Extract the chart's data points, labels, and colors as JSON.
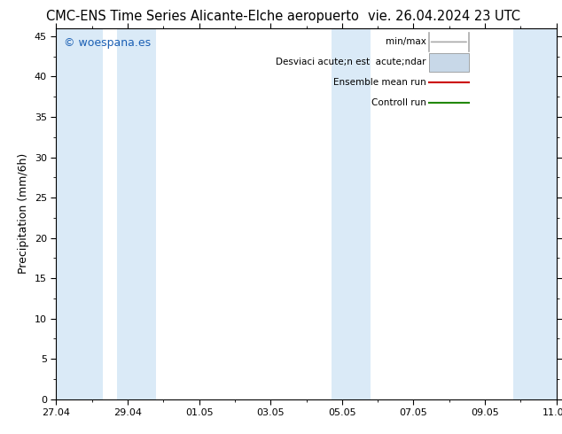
{
  "title_left": "CMC-ENS Time Series Alicante-Elche aeropuerto",
  "title_right": "vie. 26.04.2024 23 UTC",
  "ylabel": "Precipitation (mm/6h)",
  "ylim": [
    0,
    46
  ],
  "yticks": [
    0,
    5,
    10,
    15,
    20,
    25,
    30,
    35,
    40,
    45
  ],
  "xlim_start": 0,
  "xlim_end": 14,
  "xtick_labels": [
    "27.04",
    "29.04",
    "01.05",
    "03.05",
    "05.05",
    "07.05",
    "09.05",
    "11.05"
  ],
  "xtick_positions": [
    0,
    2,
    4,
    6,
    8,
    10,
    12,
    14
  ],
  "shaded_bands": [
    [
      0,
      1.3
    ],
    [
      1.7,
      2.8
    ],
    [
      7.7,
      8.8
    ],
    [
      12.8,
      14
    ]
  ],
  "band_color": "#daeaf7",
  "background_color": "#ffffff",
  "plot_bg_color": "#ffffff",
  "watermark_text": "© woespana.es",
  "watermark_color": "#1a5fb4",
  "legend_label_1": "min/max",
  "legend_label_2": "Desviaci acute;n est  acute;ndar",
  "legend_label_3": "Ensemble mean run",
  "legend_label_4": "Controll run",
  "legend_color_1": "#aaaaaa",
  "legend_color_2": "#c8d8e8",
  "legend_color_3": "#cc0000",
  "legend_color_4": "#228800",
  "title_fontsize": 10.5,
  "tick_fontsize": 8,
  "ylabel_fontsize": 9,
  "legend_fontsize": 7.5
}
